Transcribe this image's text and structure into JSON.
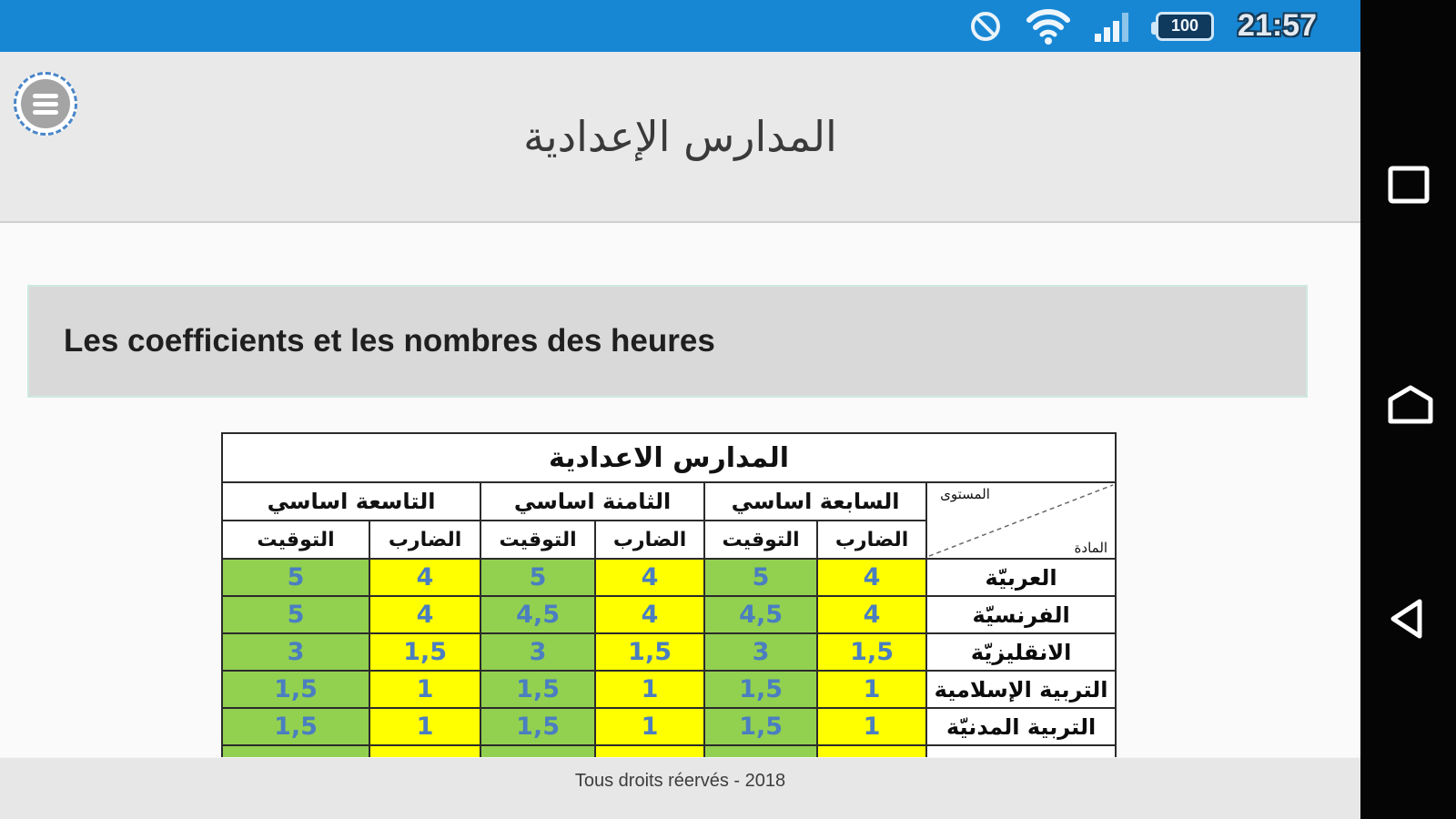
{
  "status_bar": {
    "time": "21:57",
    "battery_level": "100",
    "bg_color": "#1787d4",
    "icons": [
      "do-not-disturb-icon",
      "wifi-icon",
      "signal-icon",
      "battery-icon"
    ]
  },
  "header": {
    "title": "المدارس الإعدادية",
    "menu_icon": "hamburger-menu-icon"
  },
  "section": {
    "heading": "Les coefficients et les nombres des heures"
  },
  "table": {
    "title": "المدارس الاعدادية",
    "corner": {
      "top": "المستوى",
      "bottom": "المادة"
    },
    "groups": [
      {
        "label": "السابعة اساسي"
      },
      {
        "label": "الثامنة اساسي"
      },
      {
        "label": "التاسعة اساسي"
      }
    ],
    "subheaders": {
      "coef": "الضارب",
      "time": "التوقيت"
    },
    "rows": [
      {
        "subject": "العربيّة",
        "values": [
          "4",
          "5",
          "4",
          "5",
          "4",
          "5"
        ]
      },
      {
        "subject": "الفرنسيّة",
        "values": [
          "4",
          "4,5",
          "4",
          "4,5",
          "4",
          "5"
        ]
      },
      {
        "subject": "الانقليزيّة",
        "values": [
          "1,5",
          "3",
          "1,5",
          "3",
          "1,5",
          "3"
        ]
      },
      {
        "subject": "التربية الإسلامية",
        "values": [
          "1",
          "1,5",
          "1",
          "1,5",
          "1",
          "1,5"
        ]
      },
      {
        "subject": "التربية المدنيّة",
        "values": [
          "1",
          "1,5",
          "1",
          "1,5",
          "1",
          "1,5"
        ]
      },
      {
        "subject": "",
        "values": [
          "",
          "",
          "",
          "",
          "",
          ""
        ]
      }
    ],
    "colors": {
      "time_bg": "#92d050",
      "coef_bg": "#ffff00",
      "value_color": "#4a7ec1"
    }
  },
  "footer": {
    "text": "Tous droits réervés - 2018"
  },
  "nav_bar": {
    "icons": [
      "recents-icon",
      "home-icon",
      "back-icon"
    ]
  }
}
